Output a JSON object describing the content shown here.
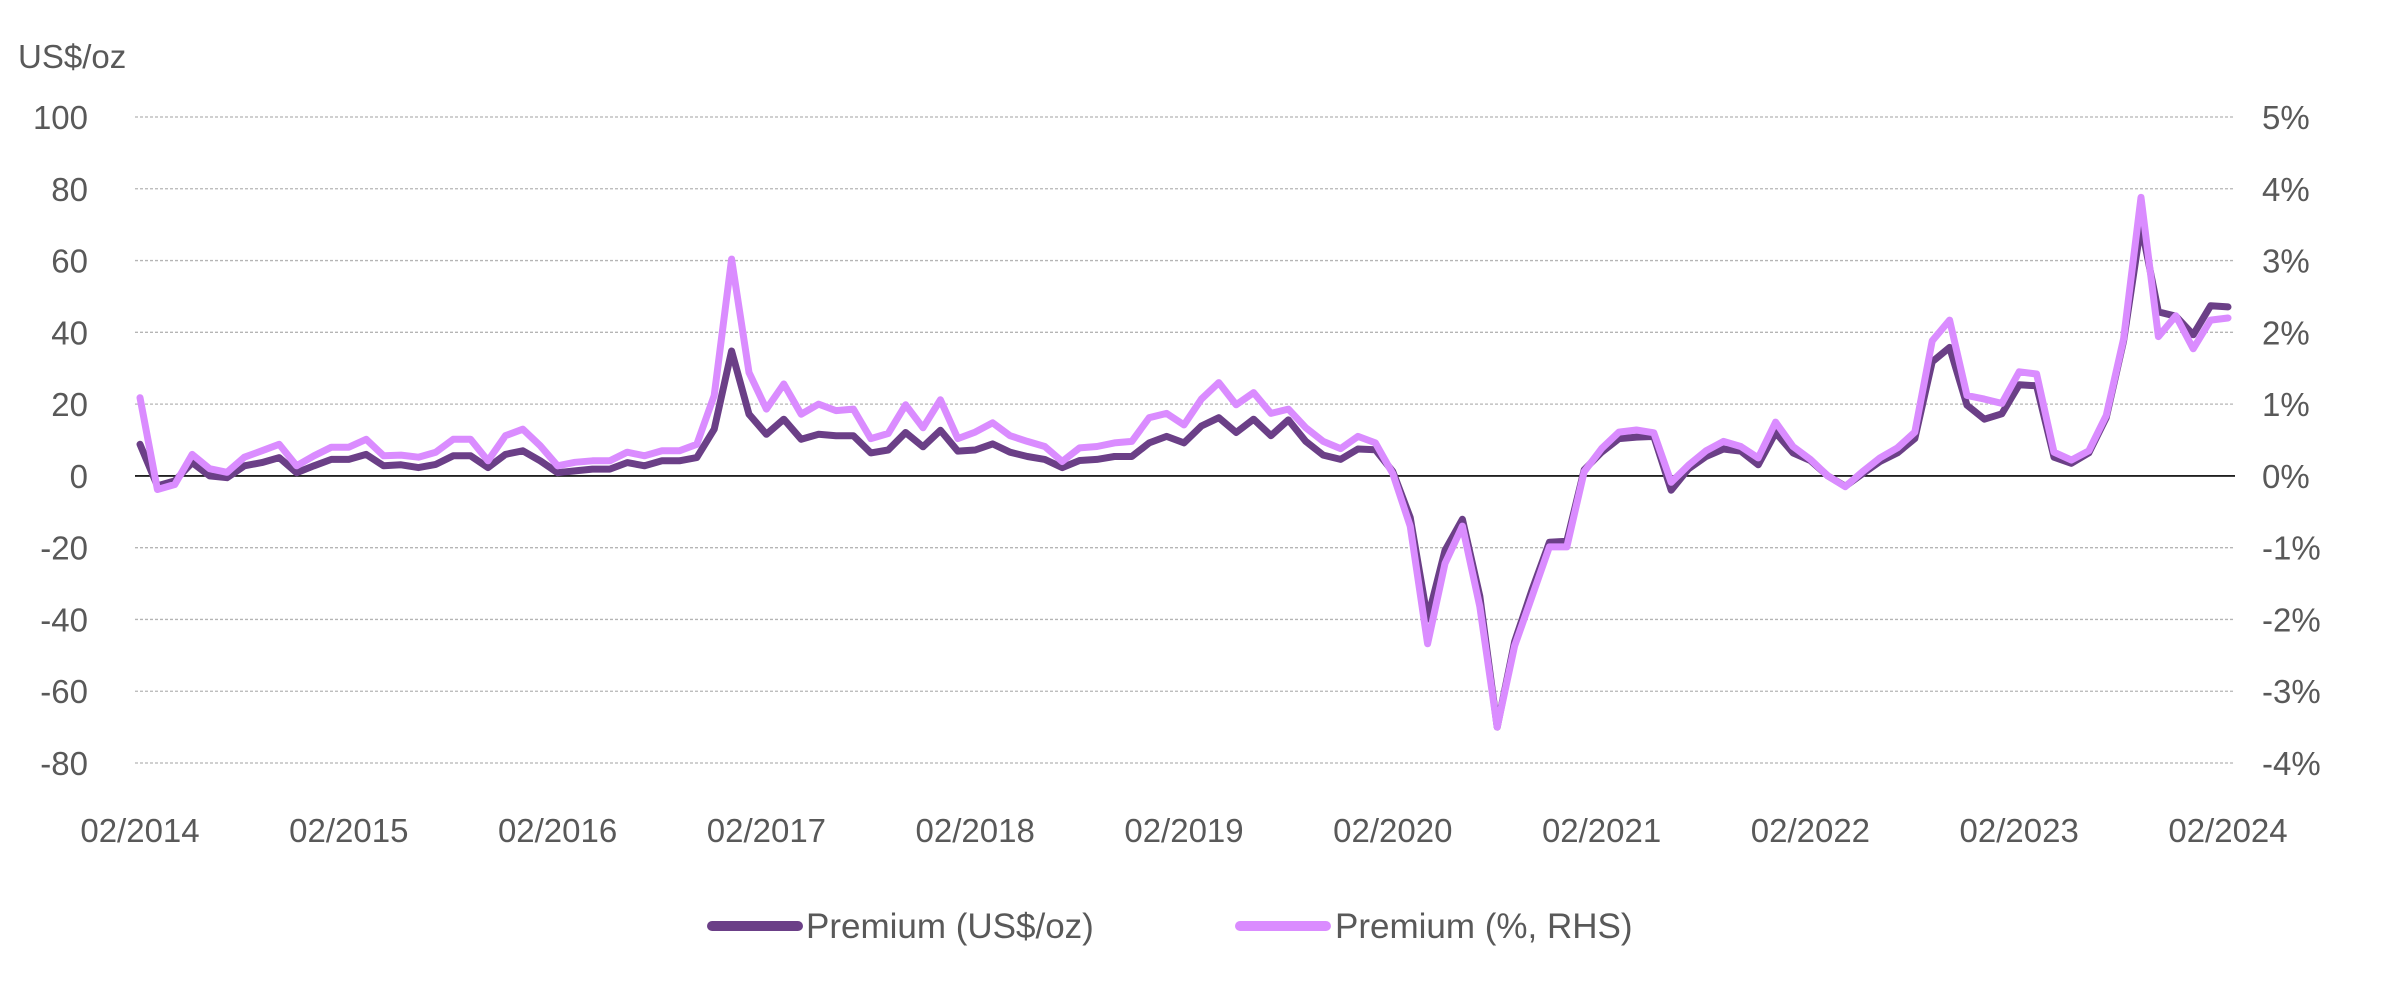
{
  "chart_data": {
    "type": "line",
    "title": "",
    "y_unit_label": "US$/oz",
    "ylim": [
      -80,
      100
    ],
    "y_ticks": [
      "100",
      "80",
      "60",
      "40",
      "20",
      "0",
      "-20",
      "-40",
      "-60",
      "-80"
    ],
    "y2lim": [
      -4,
      5
    ],
    "y2_ticks": [
      "5%",
      "4%",
      "3%",
      "2%",
      "1%",
      "0%",
      "-1%",
      "-2%",
      "-3%",
      "-4%"
    ],
    "x_ticks": [
      "02/2014",
      "02/2015",
      "02/2016",
      "02/2017",
      "02/2018",
      "02/2019",
      "02/2020",
      "02/2021",
      "02/2022",
      "02/2023",
      "02/2024"
    ],
    "grid": true,
    "legend_position": "bottom",
    "x": [
      "02/2014",
      "03/2014",
      "04/2014",
      "05/2014",
      "06/2014",
      "07/2014",
      "08/2014",
      "09/2014",
      "10/2014",
      "11/2014",
      "12/2014",
      "01/2015",
      "02/2015",
      "03/2015",
      "04/2015",
      "05/2015",
      "06/2015",
      "07/2015",
      "08/2015",
      "09/2015",
      "10/2015",
      "11/2015",
      "12/2015",
      "01/2016",
      "02/2016",
      "03/2016",
      "04/2016",
      "05/2016",
      "06/2016",
      "07/2016",
      "08/2016",
      "09/2016",
      "10/2016",
      "11/2016",
      "12/2016",
      "01/2017",
      "02/2017",
      "03/2017",
      "04/2017",
      "05/2017",
      "06/2017",
      "07/2017",
      "08/2017",
      "09/2017",
      "10/2017",
      "11/2017",
      "12/2017",
      "01/2018",
      "02/2018",
      "03/2018",
      "04/2018",
      "05/2018",
      "06/2018",
      "07/2018",
      "08/2018",
      "09/2018",
      "10/2018",
      "11/2018",
      "12/2018",
      "01/2019",
      "02/2019",
      "03/2019",
      "04/2019",
      "05/2019",
      "06/2019",
      "07/2019",
      "08/2019",
      "09/2019",
      "10/2019",
      "11/2019",
      "12/2019",
      "01/2020",
      "02/2020",
      "03/2020",
      "04/2020",
      "05/2020",
      "06/2020",
      "07/2020",
      "08/2020",
      "09/2020",
      "10/2020",
      "11/2020",
      "12/2020",
      "01/2021",
      "02/2021",
      "03/2021",
      "04/2021",
      "05/2021",
      "06/2021",
      "07/2021",
      "08/2021",
      "09/2021",
      "10/2021",
      "11/2021",
      "12/2021",
      "01/2022",
      "02/2022",
      "03/2022",
      "04/2022",
      "05/2022",
      "06/2022",
      "07/2022",
      "08/2022",
      "09/2022",
      "10/2022",
      "11/2022",
      "12/2022",
      "01/2023",
      "02/2023",
      "03/2023",
      "04/2023",
      "05/2023",
      "06/2023",
      "07/2023",
      "08/2023",
      "09/2023",
      "10/2023",
      "11/2023",
      "12/2023",
      "01/2024",
      "02/2024"
    ],
    "series": [
      {
        "name": "Premium (US$/oz)",
        "axis": "left",
        "color": "#6B3F87",
        "values": [
          8.8,
          -2.8,
          -1.4,
          3.7,
          0,
          -0.5,
          2.8,
          3.7,
          5.1,
          0.9,
          2.8,
          4.6,
          4.6,
          6.0,
          2.8,
          3.1,
          2.3,
          3.2,
          5.6,
          5.6,
          2.3,
          6.0,
          7.0,
          4.2,
          0.9,
          1.4,
          1.9,
          1.9,
          3.7,
          2.8,
          4.2,
          4.2,
          5.1,
          13.0,
          34.8,
          17.2,
          11.6,
          15.8,
          10.2,
          11.6,
          11.2,
          11.2,
          6.4,
          7.2,
          12.1,
          8.1,
          12.7,
          6.9,
          7.2,
          8.9,
          6.6,
          5.4,
          4.6,
          2.3,
          4.3,
          4.6,
          5.4,
          5.4,
          9.2,
          11.0,
          9.2,
          13.9,
          16.2,
          12.1,
          15.8,
          11.2,
          15.6,
          9.6,
          5.8,
          4.6,
          7.5,
          7.3,
          1.2,
          -11.6,
          -39.9,
          -20.8,
          -12.1,
          -33.5,
          -70,
          -46.2,
          -31.8,
          -18.5,
          -18.2,
          1.7,
          6.6,
          10.4,
          10.8,
          11.0,
          -4.0,
          2.0,
          5.4,
          7.5,
          6.9,
          3.1,
          12.1,
          6.4,
          4.3,
          0,
          -2.9,
          0.6,
          4.0,
          6.4,
          10.4,
          31.8,
          35.8,
          19.7,
          15.8,
          17.3,
          25.4,
          25.1,
          5.2,
          3.5,
          6.4,
          16.2,
          37.6,
          70,
          45.7,
          44.5,
          39.3,
          47.4,
          47.1
        ]
      },
      {
        "name": "Premium (%, RHS)",
        "axis": "right",
        "color": "#DA8CFF",
        "values": [
          1.09,
          -0.19,
          -0.12,
          0.3,
          0.1,
          0.05,
          0.26,
          0.35,
          0.44,
          0.14,
          0.28,
          0.4,
          0.4,
          0.51,
          0.28,
          0.29,
          0.26,
          0.33,
          0.51,
          0.51,
          0.21,
          0.56,
          0.65,
          0.42,
          0.14,
          0.19,
          0.21,
          0.21,
          0.33,
          0.28,
          0.35,
          0.35,
          0.44,
          1.12,
          3.02,
          1.44,
          0.93,
          1.28,
          0.86,
          1.0,
          0.91,
          0.93,
          0.52,
          0.59,
          0.99,
          0.67,
          1.06,
          0.52,
          0.61,
          0.74,
          0.56,
          0.48,
          0.41,
          0.2,
          0.39,
          0.41,
          0.46,
          0.48,
          0.81,
          0.87,
          0.71,
          1.07,
          1.3,
          0.99,
          1.16,
          0.87,
          0.93,
          0.67,
          0.48,
          0.38,
          0.55,
          0.46,
          0.03,
          -0.7,
          -2.34,
          -1.22,
          -0.7,
          -1.82,
          -3.5,
          -2.37,
          -1.68,
          -0.99,
          -0.99,
          0.06,
          0.38,
          0.61,
          0.64,
          0.6,
          -0.09,
          0.15,
          0.35,
          0.48,
          0.41,
          0.25,
          0.75,
          0.41,
          0.23,
          0.0,
          -0.15,
          0.06,
          0.25,
          0.39,
          0.61,
          1.88,
          2.17,
          1.12,
          1.07,
          1.01,
          1.45,
          1.42,
          0.33,
          0.22,
          0.35,
          0.84,
          1.91,
          3.88,
          1.94,
          2.23,
          1.77,
          2.17,
          2.2
        ]
      }
    ]
  }
}
